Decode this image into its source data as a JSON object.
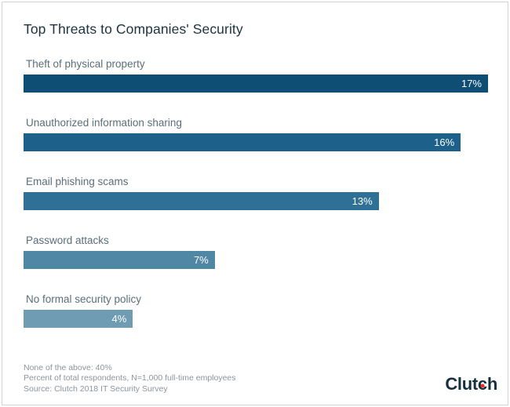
{
  "title": "Top Threats to Companies' Security",
  "chart_data": {
    "type": "bar",
    "orientation": "horizontal",
    "title": "Top Threats to Companies' Security",
    "categories": [
      "Theft of physical property",
      "Unauthorized information sharing",
      "Email phishing scams",
      "Password attacks",
      "No formal security policy"
    ],
    "values": [
      17,
      16,
      13,
      7,
      4
    ],
    "value_labels": [
      "17%",
      "16%",
      "13%",
      "7%",
      "4%"
    ],
    "bar_colors": [
      "#0E4D74",
      "#1D608A",
      "#2F7196",
      "#4F87A5",
      "#6F9CB3"
    ],
    "xlim": [
      0,
      17
    ],
    "xlabel": "",
    "ylabel": "",
    "grid": false,
    "legend": false,
    "value_label_position": "inside-end"
  },
  "footnotes": {
    "line1": "None of the above: 40%",
    "line2": "Percent of total respondents, N=1,000 full-time employees",
    "line3": "Source: Clutch 2018 IT Security Survey"
  },
  "branding": {
    "logo_part1": "Clut",
    "logo_part2": "c",
    "logo_part3": "h"
  },
  "colors": {
    "title_text": "#1D3340",
    "category_label_text": "#5B6E79",
    "value_label_text": "#FFFFFF",
    "footnote_text": "#8D949B",
    "frame_border": "#D3D3D3",
    "logo_text": "#16313E",
    "logo_dot": "#EF2E24",
    "background": "#FFFFFF"
  }
}
